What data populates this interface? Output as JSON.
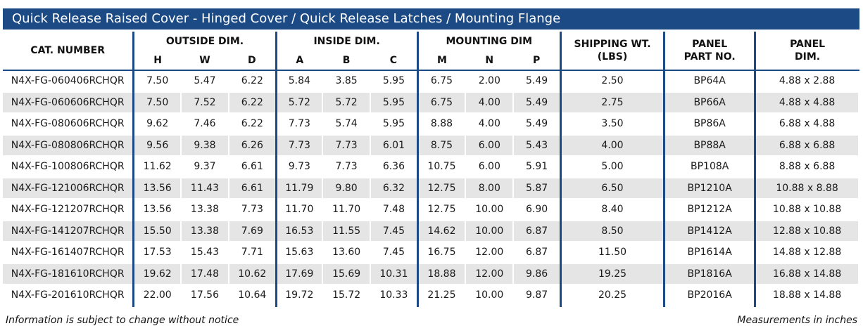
{
  "title": "Quick Release Raised Cover - Hinged Cover / Quick Release Latches / Mounting Flange",
  "headers": {
    "cat_number": "CAT. NUMBER",
    "outside_dim": "OUTSIDE DIM.",
    "outside_sub": [
      "H",
      "W",
      "D"
    ],
    "inside_dim": "INSIDE DIM.",
    "inside_sub": [
      "A",
      "B",
      "C"
    ],
    "mounting_dim": "MOUNTING DIM",
    "mounting_sub": [
      "M",
      "N",
      "P"
    ],
    "shipping_wt_line1": "SHIPPING WT.",
    "shipping_wt_line2": "(LBS)",
    "panel_part_line1": "PANEL",
    "panel_part_line2": "PART NO.",
    "panel_dim_line1": "PANEL",
    "panel_dim_line2": "DIM."
  },
  "rows": [
    {
      "cat": "N4X-FG-060406RCHQR",
      "h": "7.50",
      "w": "5.47",
      "d": "6.22",
      "a": "5.84",
      "b": "3.85",
      "c": "5.95",
      "m": "6.75",
      "n": "2.00",
      "p": "5.49",
      "wt": "2.50",
      "part": "BP64A",
      "pdim": "4.88 x 2.88"
    },
    {
      "cat": "N4X-FG-060606RCHQR",
      "h": "7.50",
      "w": "7.52",
      "d": "6.22",
      "a": "5.72",
      "b": "5.72",
      "c": "5.95",
      "m": "6.75",
      "n": "4.00",
      "p": "5.49",
      "wt": "2.75",
      "part": "BP66A",
      "pdim": "4.88 x 4.88"
    },
    {
      "cat": "N4X-FG-080606RCHQR",
      "h": "9.62",
      "w": "7.46",
      "d": "6.22",
      "a": "7.73",
      "b": "5.74",
      "c": "5.95",
      "m": "8.88",
      "n": "4.00",
      "p": "5.49",
      "wt": "3.50",
      "part": "BP86A",
      "pdim": "6.88 x 4.88"
    },
    {
      "cat": "N4X-FG-080806RCHQR",
      "h": "9.56",
      "w": "9.38",
      "d": "6.26",
      "a": "7.73",
      "b": "7.73",
      "c": "6.01",
      "m": "8.75",
      "n": "6.00",
      "p": "5.43",
      "wt": "4.00",
      "part": "BP88A",
      "pdim": "6.88 x 6.88"
    },
    {
      "cat": "N4X-FG-100806RCHQR",
      "h": "11.62",
      "w": "9.37",
      "d": "6.61",
      "a": "9.73",
      "b": "7.73",
      "c": "6.36",
      "m": "10.75",
      "n": "6.00",
      "p": "5.91",
      "wt": "5.00",
      "part": "BP108A",
      "pdim": "8.88 x 6.88"
    },
    {
      "cat": "N4X-FG-121006RCHQR",
      "h": "13.56",
      "w": "11.43",
      "d": "6.61",
      "a": "11.79",
      "b": "9.80",
      "c": "6.32",
      "m": "12.75",
      "n": "8.00",
      "p": "5.87",
      "wt": "6.50",
      "part": "BP1210A",
      "pdim": "10.88 x 8.88"
    },
    {
      "cat": "N4X-FG-121207RCHQR",
      "h": "13.56",
      "w": "13.38",
      "d": "7.73",
      "a": "11.70",
      "b": "11.70",
      "c": "7.48",
      "m": "12.75",
      "n": "10.00",
      "p": "6.90",
      "wt": "8.40",
      "part": "BP1212A",
      "pdim": "10.88 x 10.88"
    },
    {
      "cat": "N4X-FG-141207RCHQR",
      "h": "15.50",
      "w": "13.38",
      "d": "7.69",
      "a": "16.53",
      "b": "11.55",
      "c": "7.45",
      "m": "14.62",
      "n": "10.00",
      "p": "6.87",
      "wt": "8.50",
      "part": "BP1412A",
      "pdim": "12.88 x 10.88"
    },
    {
      "cat": "N4X-FG-161407RCHQR",
      "h": "17.53",
      "w": "15.43",
      "d": "7.71",
      "a": "15.63",
      "b": "13.60",
      "c": "7.45",
      "m": "16.75",
      "n": "12.00",
      "p": "6.87",
      "wt": "11.50",
      "part": "BP1614A",
      "pdim": "14.88 x 12.88"
    },
    {
      "cat": "N4X-FG-181610RCHQR",
      "h": "19.62",
      "w": "17.48",
      "d": "10.62",
      "a": "17.69",
      "b": "15.69",
      "c": "10.31",
      "m": "18.88",
      "n": "12.00",
      "p": "9.86",
      "wt": "19.25",
      "part": "BP1816A",
      "pdim": "16.88 x 14.88"
    },
    {
      "cat": "N4X-FG-201610RCHQR",
      "h": "22.00",
      "w": "17.56",
      "d": "10.64",
      "a": "19.72",
      "b": "15.72",
      "c": "10.33",
      "m": "21.25",
      "n": "10.00",
      "p": "9.87",
      "wt": "20.25",
      "part": "BP2016A",
      "pdim": "18.88 x 14.88"
    }
  ],
  "footer": {
    "left": "Information is subject to change without notice",
    "right": "Measurements in inches"
  },
  "colors": {
    "accent": "#1c4a85",
    "row_shade": "#e5e5e5"
  }
}
